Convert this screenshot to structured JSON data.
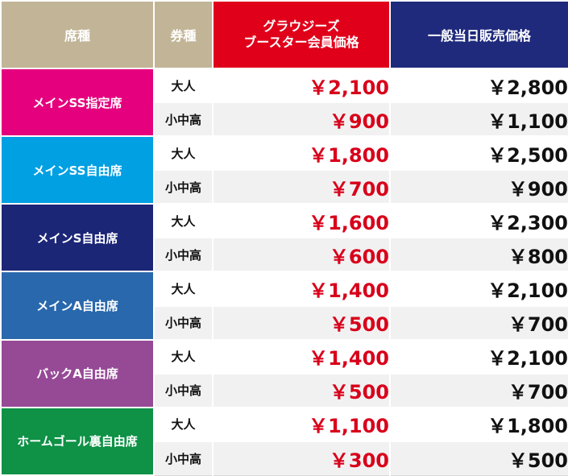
{
  "header": {
    "seat": "席種",
    "ticket_type": "券種",
    "booster_line1": "グラウジーズ",
    "booster_line2": "ブースター会員価格",
    "general": "一般当日販売価格"
  },
  "colors": {
    "header_tan": "#c2b597",
    "header_red": "#e0001a",
    "header_navy": "#1f2a7c",
    "booster_price_red": "#d8001a"
  },
  "sections": [
    {
      "seat": "メインSS指定席",
      "color": "#e5007e",
      "rows": [
        {
          "type": "大人",
          "booster": "￥2,100",
          "general": "￥2,800"
        },
        {
          "type": "小中高",
          "booster": "￥900",
          "general": "￥1,100"
        }
      ]
    },
    {
      "seat": "メインSS自由席",
      "color": "#00a0e3",
      "rows": [
        {
          "type": "大人",
          "booster": "￥1,800",
          "general": "￥2,500"
        },
        {
          "type": "小中高",
          "booster": "￥700",
          "general": "￥900"
        }
      ]
    },
    {
      "seat": "メインS自由席",
      "color": "#1c2677",
      "rows": [
        {
          "type": "大人",
          "booster": "￥1,600",
          "general": "￥2,300"
        },
        {
          "type": "小中高",
          "booster": "￥600",
          "general": "￥800"
        }
      ]
    },
    {
      "seat": "メインA自由席",
      "color": "#2968ad",
      "rows": [
        {
          "type": "大人",
          "booster": "￥1,400",
          "general": "￥2,100"
        },
        {
          "type": "小中高",
          "booster": "￥500",
          "general": "￥700"
        }
      ]
    },
    {
      "seat": "バックA自由席",
      "color": "#964a96",
      "rows": [
        {
          "type": "大人",
          "booster": "￥1,400",
          "general": "￥2,100"
        },
        {
          "type": "小中高",
          "booster": "￥500",
          "general": "￥700"
        }
      ]
    },
    {
      "seat": "ホームゴール裏自由席",
      "color": "#0f9146",
      "rows": [
        {
          "type": "大人",
          "booster": "￥1,100",
          "general": "￥1,800"
        },
        {
          "type": "小中高",
          "booster": "￥300",
          "general": "￥500"
        }
      ]
    }
  ]
}
